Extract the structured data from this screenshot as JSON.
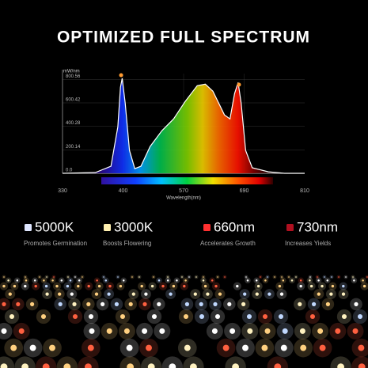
{
  "title": "OPTIMIZED FULL SPECTRUM",
  "chart_data": {
    "type": "line",
    "y_unit": "mW/nm",
    "x_label": "Wavelength(nm)",
    "x": [
      330,
      368,
      386,
      394,
      397,
      399,
      406,
      418,
      433,
      450,
      476,
      509,
      542,
      573,
      597,
      613,
      628,
      651,
      662,
      671,
      678,
      684,
      693,
      706,
      738,
      770,
      810
    ],
    "values": [
      0,
      7,
      60,
      397,
      733,
      810,
      599,
      195,
      40,
      60,
      229,
      363,
      464,
      612,
      747,
      760,
      700,
      498,
      464,
      680,
      774,
      599,
      195,
      47,
      13,
      0,
      0
    ],
    "color": "#ffffff",
    "xlim": [
      330,
      810
    ],
    "xticks": [
      330,
      400,
      570,
      690,
      810
    ],
    "ylim": [
      0,
      850
    ],
    "yticks": [
      {
        "value": 0,
        "label": "0.0"
      },
      200.14,
      400.28,
      600.42,
      800.56
    ],
    "grid": true
  },
  "features": [
    {
      "label": "5000K",
      "description": "Promotes Germination",
      "color": "#dfe6ff"
    },
    {
      "label": "3000K",
      "description": "Boosts Flowering",
      "color": "#fff0b0"
    },
    {
      "label": "660nm",
      "description": "Accelerates Growth",
      "color": "#ff3030"
    },
    {
      "label": "730nm",
      "description": "Increases Yields",
      "color": "#b01020"
    }
  ]
}
